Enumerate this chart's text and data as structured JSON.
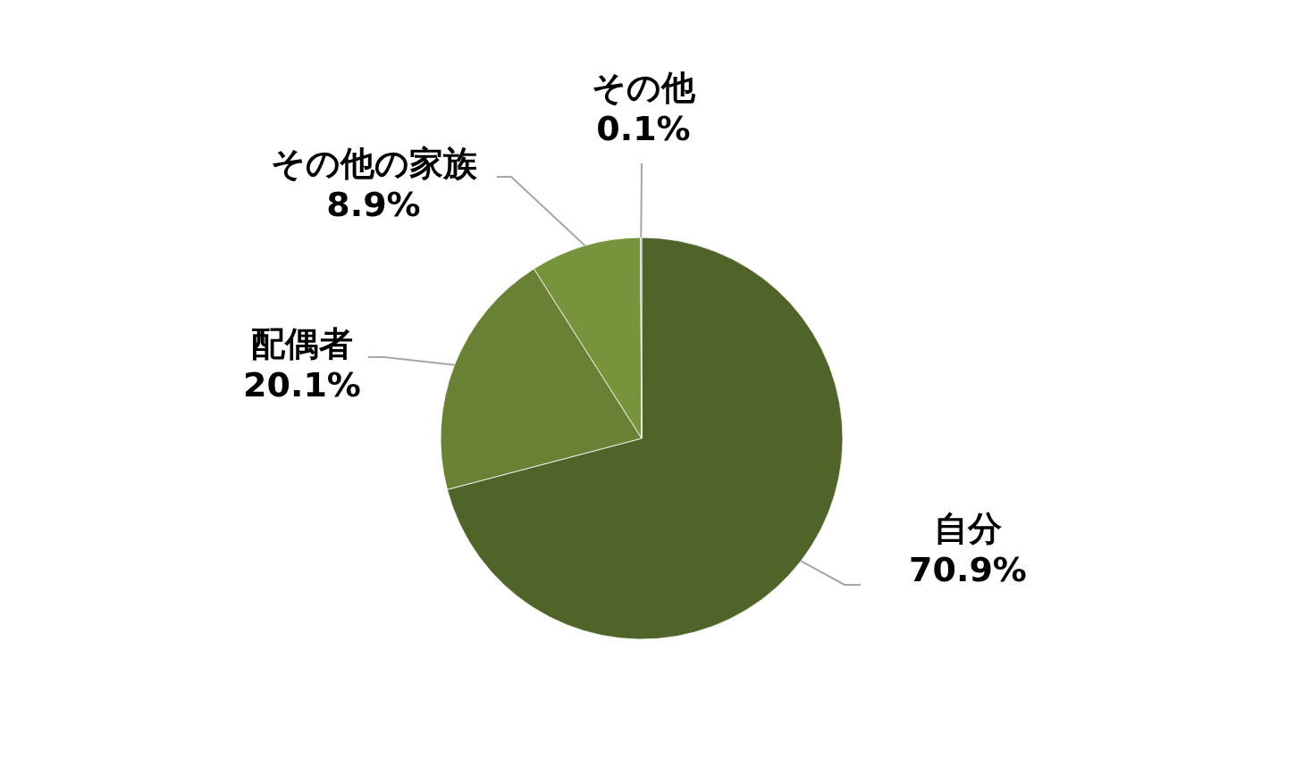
{
  "chart_data": {
    "type": "pie",
    "categories": [
      "自分",
      "配偶者",
      "その他の家族",
      "その他"
    ],
    "values": [
      70.9,
      20.1,
      8.9,
      0.1
    ],
    "value_labels": [
      "70.9%",
      "20.1%",
      "8.9%",
      "0.1%"
    ],
    "colors": [
      "#506329",
      "#6a8034",
      "#77933c",
      "#8aa74e"
    ]
  }
}
